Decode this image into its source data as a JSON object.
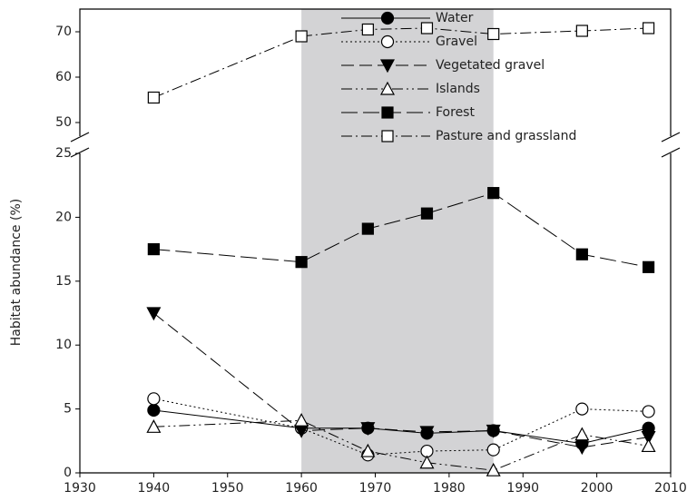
{
  "chart_data": {
    "type": "line",
    "y_label": "Habitat abundance (%)",
    "xlim": [
      1930,
      2010
    ],
    "xticks": [
      1930,
      1940,
      1950,
      1960,
      1970,
      1980,
      1990,
      2000,
      2010
    ],
    "ylim": [
      0,
      25
    ],
    "yticks": [
      0,
      5,
      10,
      15,
      20,
      25
    ],
    "upper_ylim": [
      47,
      75
    ],
    "upper_yticks": [
      50,
      60,
      70
    ],
    "shaded_span": [
      1960,
      1986
    ],
    "shade_color": "#d3d3d5",
    "x": [
      1940,
      1960,
      1969,
      1977,
      1986,
      1998,
      2007
    ],
    "series": [
      {
        "name": "Water",
        "color": "#000000",
        "marker": "circle",
        "filled": true,
        "linestyle": "solid",
        "values": [
          4.9,
          3.5,
          3.5,
          3.1,
          3.3,
          2.3,
          3.5
        ]
      },
      {
        "name": "Gravel",
        "color": "#000000",
        "marker": "circle",
        "filled": false,
        "linestyle": "dotted",
        "values": [
          5.8,
          3.5,
          1.4,
          1.7,
          1.8,
          5.0,
          4.8
        ]
      },
      {
        "name": "Vegetated gravel",
        "color": "#000000",
        "marker": "triangle-down",
        "filled": true,
        "linestyle": "dashed",
        "values": [
          12.5,
          3.3,
          3.5,
          3.2,
          3.3,
          2.0,
          2.8
        ]
      },
      {
        "name": "Islands",
        "color": "#000000",
        "marker": "triangle-up",
        "filled": false,
        "linestyle": "dashdotdot",
        "values": [
          3.6,
          4.1,
          1.7,
          0.8,
          0.2,
          3.0,
          2.1
        ]
      },
      {
        "name": "Forest",
        "color": "#000000",
        "marker": "square",
        "filled": true,
        "linestyle": "longdash",
        "values": [
          17.5,
          16.5,
          19.1,
          20.3,
          21.9,
          17.1,
          16.1
        ]
      },
      {
        "name": "Pasture and grassland",
        "color": "#000000",
        "marker": "square",
        "filled": false,
        "linestyle": "dashdot",
        "axis": "upper",
        "values": [
          55.5,
          69.0,
          70.5,
          70.8,
          69.5,
          70.2,
          70.8
        ]
      }
    ]
  }
}
